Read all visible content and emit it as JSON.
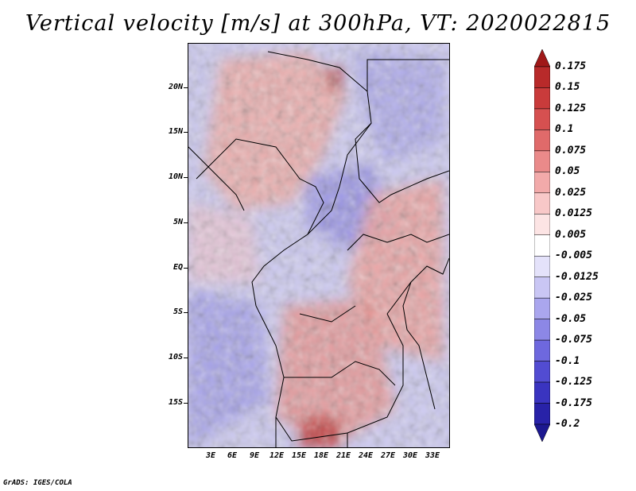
{
  "title": "Vertical velocity [m/s] at 300hPa, VT: 2020022815",
  "footer": "GrADS: IGES/COLA",
  "map": {
    "lat_labels": [
      "20N",
      "15N",
      "10N",
      "5N",
      "EQ",
      "5S",
      "10S",
      "15S"
    ],
    "lon_labels": [
      "3E",
      "6E",
      "9E",
      "12E",
      "15E",
      "18E",
      "21E",
      "24E",
      "27E",
      "30E",
      "33E"
    ]
  },
  "colorbar": {
    "labels": [
      "0.175",
      "0.15",
      "0.125",
      "0.1",
      "0.075",
      "0.05",
      "0.025",
      "0.0125",
      "0.005",
      "-0.005",
      "-0.0125",
      "-0.025",
      "-0.05",
      "-0.075",
      "-0.1",
      "-0.125",
      "-0.175",
      "-0.2"
    ],
    "colors": [
      "#a01818",
      "#b82a2a",
      "#c93b3b",
      "#d65050",
      "#e06a6a",
      "#ea8a8a",
      "#f2aaaa",
      "#f8c8c8",
      "#fce4e4",
      "#ffffff",
      "#e4e2fa",
      "#c9c6f4",
      "#aaa6ee",
      "#8c87e6",
      "#6e68de",
      "#524cd2",
      "#3a34c0",
      "#2822a8",
      "#1c1890"
    ]
  }
}
